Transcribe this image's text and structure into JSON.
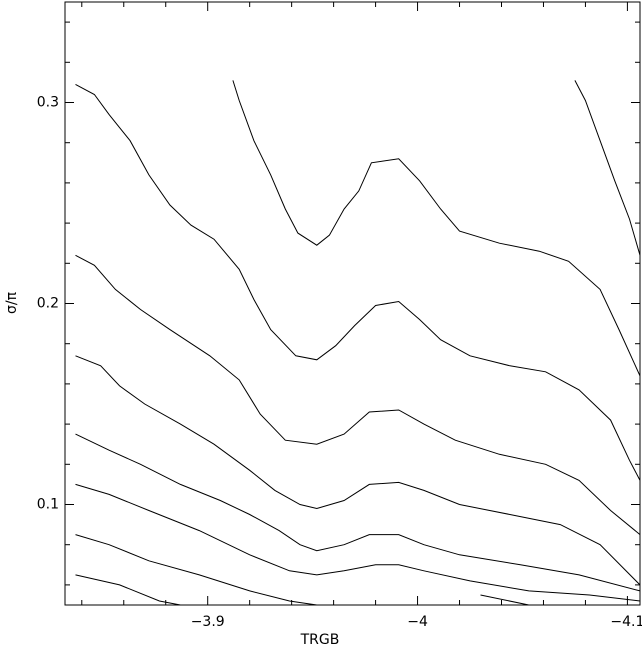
{
  "chart_data": {
    "type": "contour",
    "xlabel": "TRGB",
    "ylabel": "σ/π",
    "xlim": [
      -3.832,
      -4.106
    ],
    "ylim": [
      0.05,
      0.35
    ],
    "xticks": [
      {
        "value": -3.9,
        "label": "−3.9"
      },
      {
        "value": -4,
        "label": "−4"
      },
      {
        "value": -4.1,
        "label": "−4.1"
      }
    ],
    "yticks": [
      0.1,
      0.2,
      0.3
    ],
    "xminorticks": [
      -3.84,
      -3.86,
      -3.88,
      -3.92,
      -3.94,
      -3.96,
      -3.98,
      -4.02,
      -4.04,
      -4.06,
      -4.08
    ],
    "yminorticks": [
      0.06,
      0.08,
      0.12,
      0.14,
      0.16,
      0.18,
      0.22,
      0.24,
      0.26,
      0.28,
      0.32,
      0.34
    ],
    "color": "#000000",
    "series": [
      {
        "x": [
          -4.075,
          -4.08,
          -4.087,
          -4.094,
          -4.101,
          -4.106
        ],
        "values": [
          0.311,
          0.301,
          0.281,
          0.261,
          0.242,
          0.224
        ]
      },
      {
        "x": [
          -3.912,
          -3.915,
          -3.922,
          -3.93,
          -3.937,
          -3.943,
          -3.952,
          -3.958,
          -3.965,
          -3.972,
          -3.978,
          -3.991,
          -4.001,
          -4.011,
          -4.02,
          -4.039,
          -4.058,
          -4.072,
          -4.087,
          -4.096,
          -4.106
        ],
        "values": [
          0.311,
          0.301,
          0.281,
          0.264,
          0.247,
          0.235,
          0.229,
          0.234,
          0.247,
          0.256,
          0.27,
          0.272,
          0.261,
          0.247,
          0.236,
          0.23,
          0.226,
          0.221,
          0.207,
          0.187,
          0.164
        ]
      },
      {
        "x": [
          -3.837,
          -3.846,
          -3.853,
          -3.863,
          -3.872,
          -3.882,
          -3.892,
          -3.903,
          -3.915,
          -3.922,
          -3.93,
          -3.942,
          -3.952,
          -3.961,
          -3.97,
          -3.98,
          -3.991,
          -4.001,
          -4.011,
          -4.025,
          -4.044,
          -4.061,
          -4.077,
          -4.092,
          -4.101,
          -4.106
        ],
        "values": [
          0.309,
          0.304,
          0.294,
          0.281,
          0.264,
          0.249,
          0.239,
          0.232,
          0.217,
          0.202,
          0.187,
          0.174,
          0.172,
          0.179,
          0.189,
          0.199,
          0.201,
          0.192,
          0.182,
          0.174,
          0.169,
          0.166,
          0.157,
          0.142,
          0.122,
          0.112
        ]
      },
      {
        "x": [
          -3.837,
          -3.846,
          -3.856,
          -3.868,
          -3.882,
          -3.901,
          -3.915,
          -3.925,
          -3.937,
          -3.952,
          -3.965,
          -3.977,
          -3.991,
          -4.003,
          -4.018,
          -4.039,
          -4.061,
          -4.077,
          -4.092,
          -4.106
        ],
        "values": [
          0.224,
          0.219,
          0.207,
          0.197,
          0.187,
          0.174,
          0.162,
          0.145,
          0.132,
          0.13,
          0.135,
          0.146,
          0.147,
          0.14,
          0.132,
          0.125,
          0.12,
          0.112,
          0.097,
          0.085
        ]
      },
      {
        "x": [
          -3.837,
          -3.849,
          -3.858,
          -3.87,
          -3.887,
          -3.903,
          -3.92,
          -3.932,
          -3.944,
          -3.952,
          -3.965,
          -3.977,
          -3.991,
          -4.003,
          -4.02,
          -4.044,
          -4.068,
          -4.087,
          -4.106
        ],
        "values": [
          0.174,
          0.169,
          0.159,
          0.15,
          0.14,
          0.13,
          0.117,
          0.107,
          0.1,
          0.098,
          0.102,
          0.11,
          0.111,
          0.107,
          0.1,
          0.095,
          0.09,
          0.08,
          0.06
        ]
      },
      {
        "x": [
          -3.837,
          -3.853,
          -3.868,
          -3.887,
          -3.906,
          -3.92,
          -3.934,
          -3.944,
          -3.952,
          -3.965,
          -3.977,
          -3.991,
          -4.003,
          -4.02,
          -4.049,
          -4.077,
          -4.106
        ],
        "values": [
          0.135,
          0.127,
          0.12,
          0.11,
          0.102,
          0.095,
          0.087,
          0.08,
          0.077,
          0.08,
          0.085,
          0.085,
          0.08,
          0.075,
          0.07,
          0.065,
          0.057
        ]
      },
      {
        "x": [
          -3.837,
          -3.853,
          -3.872,
          -3.896,
          -3.92,
          -3.939,
          -3.952,
          -3.965,
          -3.98,
          -3.991,
          -4.003,
          -4.025,
          -4.053,
          -4.082,
          -4.106
        ],
        "values": [
          0.11,
          0.105,
          0.097,
          0.087,
          0.075,
          0.067,
          0.065,
          0.067,
          0.07,
          0.07,
          0.067,
          0.062,
          0.057,
          0.055,
          0.052
        ]
      },
      {
        "x": [
          -3.837,
          -3.853,
          -3.872,
          -3.896,
          -3.92,
          -3.939,
          -3.952
        ],
        "values": [
          0.085,
          0.08,
          0.072,
          0.065,
          0.057,
          0.052,
          0.05
        ]
      },
      {
        "x": [
          -4.03,
          -4.053
        ],
        "values": [
          0.055,
          0.05
        ]
      },
      {
        "x": [
          -3.837,
          -3.858,
          -3.877,
          -3.887
        ],
        "values": [
          0.065,
          0.06,
          0.052,
          0.05
        ]
      }
    ]
  }
}
